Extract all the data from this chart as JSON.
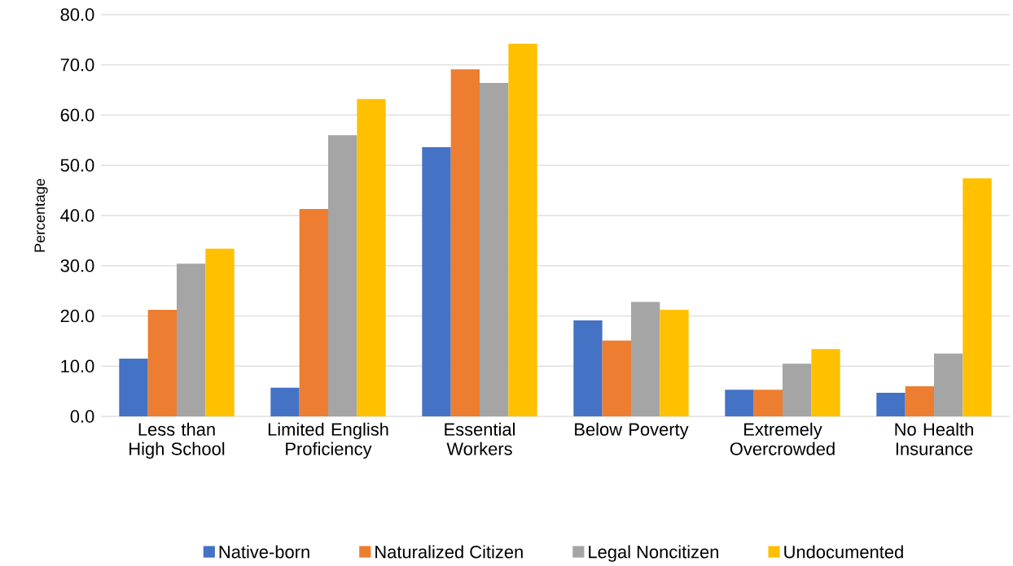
{
  "chart_data": {
    "type": "bar",
    "ylabel": "Percentage",
    "categories": [
      "Less than High School",
      "Limited English Proficiency",
      "Essential Workers",
      "Below Poverty",
      "Extremely Overcrowded",
      "No Health Insurance"
    ],
    "series": [
      {
        "name": "Native-born",
        "color": "#4472c4",
        "values": [
          11.5,
          5.7,
          53.6,
          19.1,
          5.3,
          4.7
        ]
      },
      {
        "name": "Naturalized Citizen",
        "color": "#ed7d31",
        "values": [
          21.2,
          41.3,
          69.1,
          15.1,
          5.3,
          6.0
        ]
      },
      {
        "name": "Legal Noncitizen",
        "color": "#a5a5a5",
        "values": [
          30.4,
          56.0,
          66.4,
          22.8,
          10.5,
          12.5
        ]
      },
      {
        "name": "Undocumented",
        "color": "#ffc000",
        "values": [
          33.4,
          63.2,
          74.2,
          21.2,
          13.4,
          47.4
        ]
      }
    ],
    "ylim": [
      0,
      80
    ],
    "yticks": [
      {
        "value": 0,
        "label": "0.0"
      },
      {
        "value": 10,
        "label": "10.0"
      },
      {
        "value": 20,
        "label": "20.0"
      },
      {
        "value": 30,
        "label": "30.0"
      },
      {
        "value": 40,
        "label": "40.0"
      },
      {
        "value": 50,
        "label": "50.0"
      },
      {
        "value": 60,
        "label": "60.0"
      },
      {
        "value": 70,
        "label": "70.0"
      },
      {
        "value": 80,
        "label": "80.0"
      }
    ],
    "grid": "y",
    "legend": "bottom"
  }
}
